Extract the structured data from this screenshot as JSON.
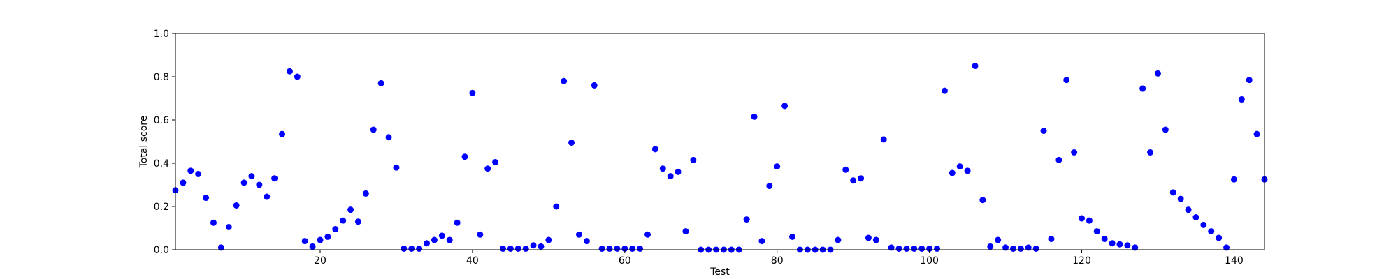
{
  "chart_data": {
    "type": "scatter",
    "title": "",
    "xlabel": "Test",
    "ylabel": "Total score",
    "xlim": [
      1,
      144
    ],
    "ylim": [
      0.0,
      1.0
    ],
    "xticks": [
      20,
      40,
      60,
      80,
      100,
      120,
      140
    ],
    "xtick_labels": [
      "20",
      "40",
      "60",
      "80",
      "100",
      "120",
      "140"
    ],
    "yticks": [
      0.0,
      0.2,
      0.4,
      0.6,
      0.8,
      1.0
    ],
    "ytick_labels": [
      "0.0",
      "0.2",
      "0.4",
      "0.6",
      "0.8",
      "1.0"
    ],
    "grid": false,
    "marker_color": "#0000ff",
    "series": [
      {
        "x": [
          1,
          2,
          3,
          4,
          5,
          6,
          7,
          8,
          9,
          10,
          11,
          12,
          13,
          14,
          15,
          16,
          17,
          18,
          19,
          20,
          21,
          22,
          23,
          24,
          25,
          26,
          27,
          28,
          29,
          30,
          31,
          32,
          33,
          34,
          35,
          36,
          37,
          38,
          39,
          40,
          41,
          42,
          43,
          44,
          45,
          46,
          47,
          48,
          49,
          50,
          51,
          52,
          53,
          54,
          55,
          56,
          57,
          58,
          59,
          60,
          61,
          62,
          63,
          64,
          65,
          66,
          67,
          68,
          69,
          70,
          71,
          72,
          73,
          74,
          75,
          76,
          77,
          78,
          79,
          80,
          81,
          82,
          83,
          84,
          85,
          86,
          87,
          88,
          89,
          90,
          91,
          92,
          93,
          94,
          95,
          96,
          97,
          98,
          99,
          100,
          101,
          102,
          103,
          104,
          105,
          106,
          107,
          108,
          109,
          110,
          111,
          112,
          113,
          114,
          115,
          116,
          117,
          118,
          119,
          120,
          121,
          122,
          123,
          124,
          125,
          126,
          127,
          128,
          129,
          130,
          131,
          132,
          133,
          134,
          135,
          136,
          137,
          138,
          139,
          140,
          141,
          142,
          143,
          144
        ],
        "y": [
          0.275,
          0.31,
          0.365,
          0.35,
          0.24,
          0.125,
          0.01,
          0.105,
          0.205,
          0.31,
          0.34,
          0.3,
          0.245,
          0.33,
          0.535,
          0.825,
          0.8,
          0.04,
          0.015,
          0.045,
          0.06,
          0.095,
          0.135,
          0.185,
          0.13,
          0.26,
          0.555,
          0.77,
          0.52,
          0.38,
          0.005,
          0.005,
          0.005,
          0.03,
          0.045,
          0.065,
          0.045,
          0.125,
          0.43,
          0.725,
          0.07,
          0.375,
          0.405,
          0.005,
          0.005,
          0.005,
          0.005,
          0.02,
          0.015,
          0.045,
          0.2,
          0.78,
          0.495,
          0.07,
          0.04,
          0.76,
          0.005,
          0.005,
          0.005,
          0.005,
          0.005,
          0.005,
          0.07,
          0.465,
          0.375,
          0.34,
          0.36,
          0.085,
          0.415,
          0.0,
          0.0,
          0.0,
          0.0,
          0.0,
          0.0,
          0.14,
          0.615,
          0.04,
          0.295,
          0.385,
          0.665,
          0.06,
          0.0,
          0.0,
          0.0,
          0.0,
          0.0,
          0.045,
          0.37,
          0.32,
          0.33,
          0.055,
          0.045,
          0.51,
          0.01,
          0.005,
          0.005,
          0.005,
          0.005,
          0.005,
          0.005,
          0.735,
          0.355,
          0.385,
          0.365,
          0.85,
          0.23,
          0.015,
          0.045,
          0.01,
          0.005,
          0.005,
          0.01,
          0.005,
          0.55,
          0.05,
          0.415,
          0.785,
          0.45,
          0.145,
          0.135,
          0.085,
          0.05,
          0.03,
          0.025,
          0.02,
          0.01,
          0.745,
          0.45,
          0.815,
          0.555,
          0.265,
          0.235,
          0.185,
          0.15,
          0.115,
          0.085,
          0.055,
          0.01,
          0.325,
          0.695,
          0.785,
          0.535,
          0.325
        ]
      }
    ]
  }
}
